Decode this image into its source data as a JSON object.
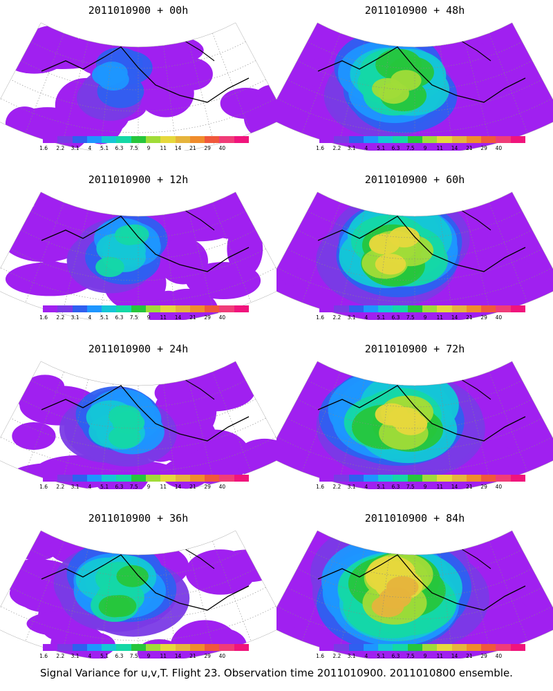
{
  "caption": "Signal Variance for u,v,T. Flight 23. Observation time 2011010900. 2011010800 ensemble.",
  "colorbar": {
    "colors": [
      "#a020f0",
      "#7a3ae6",
      "#2f5ff0",
      "#1e96ff",
      "#14c7d6",
      "#14d8a6",
      "#26c63c",
      "#a0dc38",
      "#e6d83c",
      "#e6b43c",
      "#f08c2c",
      "#f0583c",
      "#f03c78",
      "#f0147c"
    ],
    "tick_labels": [
      "1.6",
      "2.2",
      "3.1",
      "4",
      "5.1",
      "6.3",
      "7.5",
      "9",
      "11",
      "14",
      "21",
      "29",
      "40"
    ]
  },
  "panels": [
    {
      "title": "2011010900 + 00h",
      "level": 0.15
    },
    {
      "title": "2011010900 + 48h",
      "level": 0.55
    },
    {
      "title": "2011010900 + 12h",
      "level": 0.3
    },
    {
      "title": "2011010900 + 60h",
      "level": 0.65
    },
    {
      "title": "2011010900 + 24h",
      "level": 0.38
    },
    {
      "title": "2011010900 + 72h",
      "level": 0.72
    },
    {
      "title": "2011010900 + 36h",
      "level": 0.48
    },
    {
      "title": "2011010900 + 84h",
      "level": 0.8
    }
  ]
}
